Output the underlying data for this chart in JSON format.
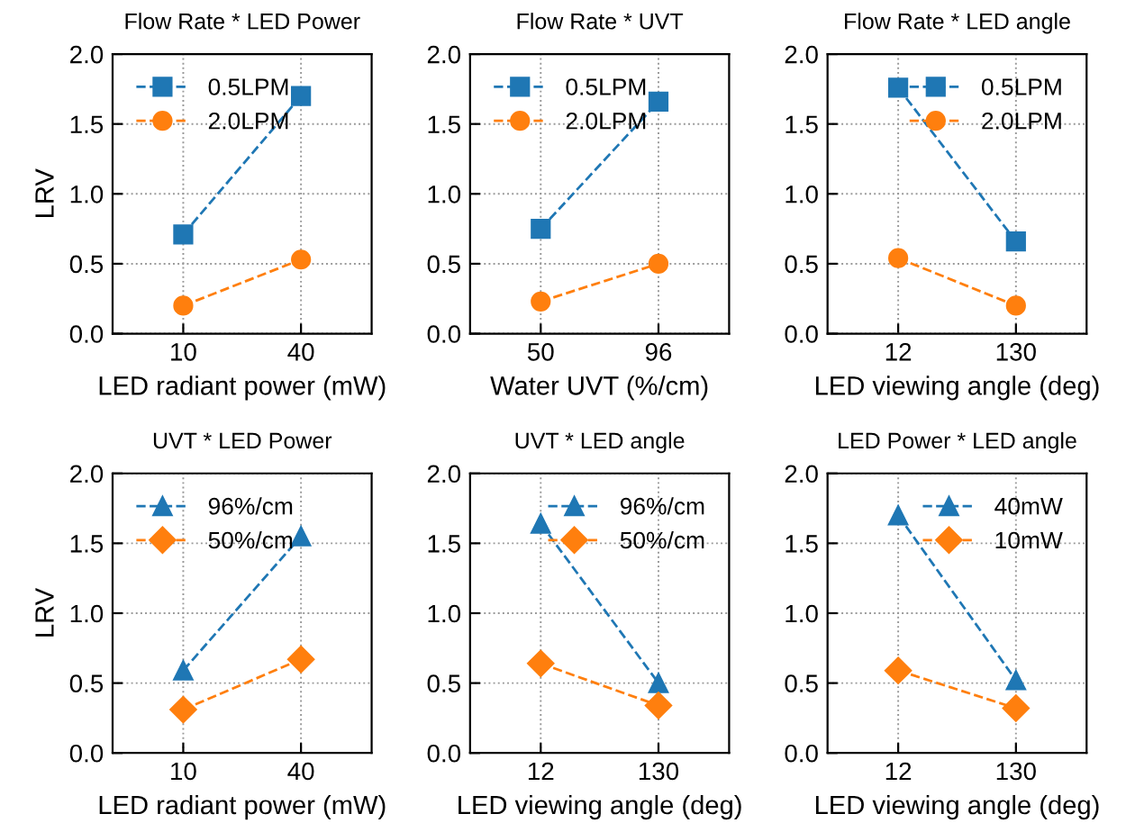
{
  "chart_data": [
    {
      "type": "line",
      "title": "Flow Rate * LED Power",
      "xlabel": "LED radiant power (mW)",
      "ylabel": "LRV",
      "categories": [
        "10",
        "40"
      ],
      "ylim": [
        0,
        2
      ],
      "yticks": [
        {
          "value": 0,
          "label": "0.0"
        },
        {
          "value": 0.5,
          "label": "0.5"
        },
        {
          "value": 1,
          "label": "1.0"
        },
        {
          "value": 1.5,
          "label": "1.5"
        },
        {
          "value": 2,
          "label": "2.0"
        }
      ],
      "grid": true,
      "legend": "top left",
      "line_style": "dashed",
      "series": [
        {
          "name": "0.5LPM",
          "color": "#1f77b4",
          "marker": "square",
          "values": [
            0.71,
            1.7
          ]
        },
        {
          "name": "2.0LPM",
          "color": "#ff7f0e",
          "marker": "circle",
          "values": [
            0.2,
            0.53
          ]
        }
      ]
    },
    {
      "type": "line",
      "title": "Flow Rate * UVT",
      "xlabel": "Water UVT (%/cm)",
      "categories": [
        "50",
        "96"
      ],
      "ylim": [
        0,
        2
      ],
      "yticks": [
        {
          "value": 0,
          "label": "0.0"
        },
        {
          "value": 0.5,
          "label": "0.5"
        },
        {
          "value": 1,
          "label": "1.0"
        },
        {
          "value": 1.5,
          "label": "1.5"
        },
        {
          "value": 2,
          "label": "2.0"
        }
      ],
      "grid": true,
      "legend": "top left",
      "line_style": "dashed",
      "series": [
        {
          "name": "0.5LPM",
          "color": "#1f77b4",
          "marker": "square",
          "values": [
            0.75,
            1.66
          ]
        },
        {
          "name": "2.0LPM",
          "color": "#ff7f0e",
          "marker": "circle",
          "values": [
            0.23,
            0.5
          ]
        }
      ]
    },
    {
      "type": "line",
      "title": "Flow Rate * LED angle",
      "xlabel": "LED viewing angle (deg)",
      "categories": [
        "12",
        "130"
      ],
      "ylim": [
        0,
        2
      ],
      "yticks": [
        {
          "value": 0,
          "label": "0.0"
        },
        {
          "value": 0.5,
          "label": "0.5"
        },
        {
          "value": 1,
          "label": "1.0"
        },
        {
          "value": 1.5,
          "label": "1.5"
        },
        {
          "value": 2,
          "label": "2.0"
        }
      ],
      "grid": true,
      "legend": "top right",
      "line_style": "dashed",
      "series": [
        {
          "name": "0.5LPM",
          "color": "#1f77b4",
          "marker": "square",
          "values": [
            1.76,
            0.66
          ]
        },
        {
          "name": "2.0LPM",
          "color": "#ff7f0e",
          "marker": "circle",
          "values": [
            0.54,
            0.2
          ]
        }
      ]
    },
    {
      "type": "line",
      "title": "UVT * LED Power",
      "xlabel": "LED radiant power (mW)",
      "ylabel": "LRV",
      "categories": [
        "10",
        "40"
      ],
      "ylim": [
        0,
        2
      ],
      "yticks": [
        {
          "value": 0,
          "label": "0.0"
        },
        {
          "value": 0.5,
          "label": "0.5"
        },
        {
          "value": 1,
          "label": "1.0"
        },
        {
          "value": 1.5,
          "label": "1.5"
        },
        {
          "value": 2,
          "label": "2.0"
        }
      ],
      "grid": true,
      "legend": "top left",
      "line_style": "dashed",
      "series": [
        {
          "name": "96%/cm",
          "color": "#1f77b4",
          "marker": "triangle",
          "values": [
            0.59,
            1.55
          ]
        },
        {
          "name": "50%/cm",
          "color": "#ff7f0e",
          "marker": "diamond",
          "values": [
            0.31,
            0.67
          ]
        }
      ]
    },
    {
      "type": "line",
      "title": "UVT * LED angle",
      "xlabel": "LED viewing angle (deg)",
      "categories": [
        "12",
        "130"
      ],
      "ylim": [
        0,
        2
      ],
      "yticks": [
        {
          "value": 0,
          "label": "0.0"
        },
        {
          "value": 0.5,
          "label": "0.5"
        },
        {
          "value": 1,
          "label": "1.0"
        },
        {
          "value": 1.5,
          "label": "1.5"
        },
        {
          "value": 2,
          "label": "2.0"
        }
      ],
      "grid": true,
      "legend": "top right",
      "line_style": "dashed",
      "series": [
        {
          "name": "96%/cm",
          "color": "#1f77b4",
          "marker": "triangle",
          "values": [
            1.64,
            0.5
          ]
        },
        {
          "name": "50%/cm",
          "color": "#ff7f0e",
          "marker": "diamond",
          "values": [
            0.64,
            0.34
          ]
        }
      ]
    },
    {
      "type": "line",
      "title": "LED Power * LED angle",
      "xlabel": "LED viewing angle (deg)",
      "categories": [
        "12",
        "130"
      ],
      "ylim": [
        0,
        2
      ],
      "yticks": [
        {
          "value": 0,
          "label": "0.0"
        },
        {
          "value": 0.5,
          "label": "0.5"
        },
        {
          "value": 1,
          "label": "1.0"
        },
        {
          "value": 1.5,
          "label": "1.5"
        },
        {
          "value": 2,
          "label": "2.0"
        }
      ],
      "grid": true,
      "legend": "top right",
      "line_style": "dashed",
      "series": [
        {
          "name": "40mW",
          "color": "#1f77b4",
          "marker": "triangle",
          "values": [
            1.7,
            0.52
          ]
        },
        {
          "name": "10mW",
          "color": "#ff7f0e",
          "marker": "diamond",
          "values": [
            0.59,
            0.32
          ]
        }
      ]
    }
  ]
}
